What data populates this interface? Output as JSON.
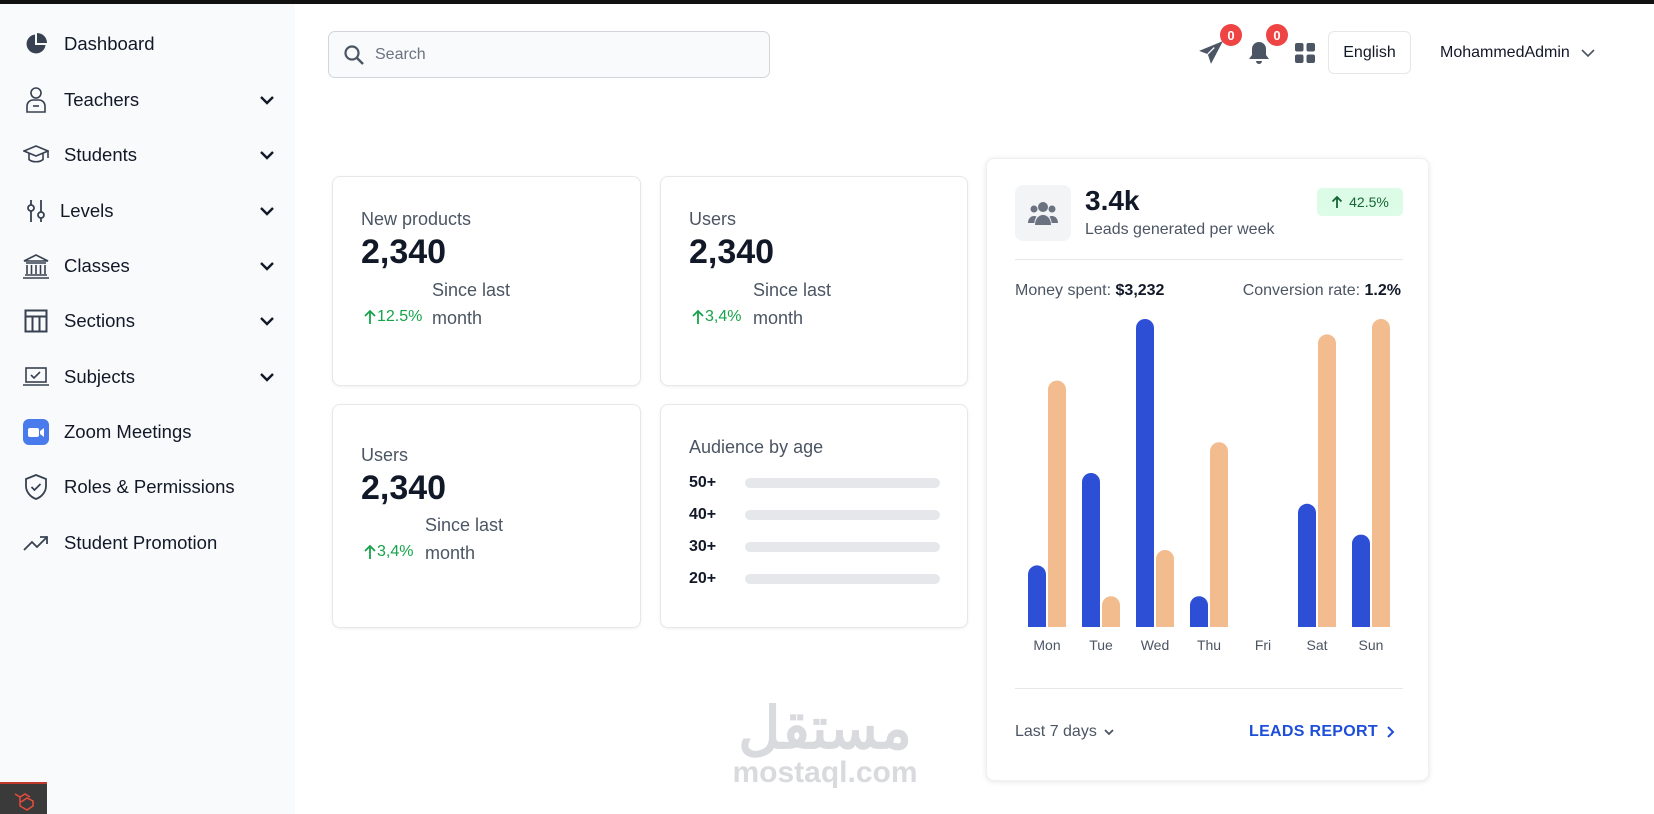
{
  "sidebar": {
    "items": [
      {
        "label": "Dashboard",
        "icon": "pie-chart-icon",
        "expandable": false
      },
      {
        "label": "Teachers",
        "icon": "teacher-icon",
        "expandable": true
      },
      {
        "label": "Students",
        "icon": "graduation-cap-icon",
        "expandable": true
      },
      {
        "label": "Levels",
        "icon": "sliders-icon",
        "expandable": true
      },
      {
        "label": "Classes",
        "icon": "building-columns-icon",
        "expandable": true
      },
      {
        "label": "Sections",
        "icon": "table-layout-icon",
        "expandable": true
      },
      {
        "label": "Subjects",
        "icon": "laptop-check-icon",
        "expandable": true
      },
      {
        "label": "Zoom Meetings",
        "icon": "zoom-video-icon",
        "expandable": false
      },
      {
        "label": "Roles & Permissions",
        "icon": "shield-check-icon",
        "expandable": false
      },
      {
        "label": "Student Promotion",
        "icon": "trending-up-icon",
        "expandable": false
      }
    ]
  },
  "header": {
    "search_placeholder": "Search",
    "messages_count": "0",
    "notifications_count": "0",
    "language": "English",
    "user_name": "MohammedAdmin"
  },
  "cards": {
    "new_products": {
      "title": "New products",
      "value": "2,340",
      "change": "12.5%",
      "since": "Since last month"
    },
    "users_top": {
      "title": "Users",
      "value": "2,340",
      "change": "3,4%",
      "since": "Since last month"
    },
    "users_bottom": {
      "title": "Users",
      "value": "2,340",
      "change": "3,4%",
      "since": "Since last month"
    },
    "audience": {
      "title": "Audience by age",
      "groups": [
        {
          "label": "50+",
          "value": 0
        },
        {
          "label": "40+",
          "value": 0
        },
        {
          "label": "30+",
          "value": 0
        },
        {
          "label": "20+",
          "value": 0
        }
      ]
    }
  },
  "leads": {
    "value": "3.4k",
    "subtitle": "Leads generated per week",
    "change": "42.5%",
    "money_label": "Money spent:",
    "money_value": "$3,232",
    "conversion_label": "Conversion rate:",
    "conversion_value": "1.2%",
    "range_label": "Last 7 days",
    "report_label": "LEADS REPORT"
  },
  "colors": {
    "accent": "#1d4ed8",
    "blue_series": "#2d4fd6",
    "orange_series": "#f3bc8e",
    "positive": "#16a34a",
    "badge_red": "#ef4444"
  },
  "watermark": {
    "arabic": "مستقل",
    "latin": "mostaql.com"
  },
  "chart_data": {
    "type": "bar",
    "categories": [
      "Mon",
      "Tue",
      "Wed",
      "Thu",
      "Fri",
      "Sat",
      "Sun"
    ],
    "series": [
      {
        "values": [
          20,
          50,
          100,
          10,
          0,
          40,
          30
        ],
        "color": "#2d4fd6"
      },
      {
        "values": [
          80,
          10,
          25,
          60,
          0,
          95,
          100
        ],
        "color": "#f3bc8e"
      }
    ],
    "ylim": [
      0,
      100
    ],
    "grid": false,
    "legend": "none"
  }
}
